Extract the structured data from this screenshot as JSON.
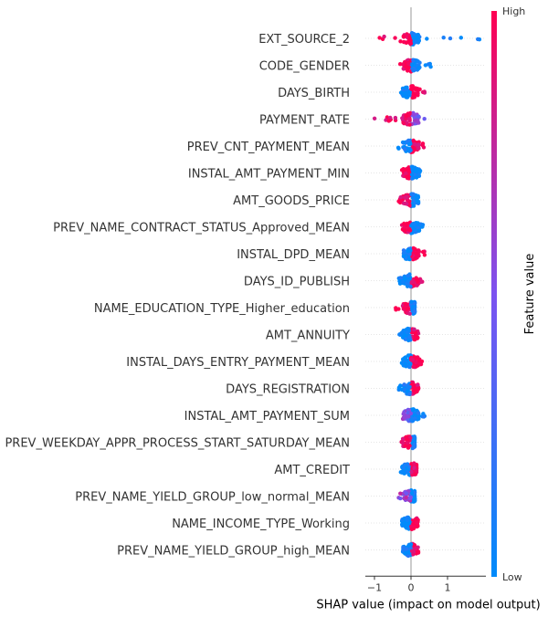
{
  "chart_data": {
    "type": "scatter",
    "subtype": "shap-beeswarm-summary",
    "xlabel": "SHAP value (impact on model output)",
    "xlim": [
      -1.25,
      2.05
    ],
    "xticks": [
      -1,
      0,
      1
    ],
    "colorbar": {
      "title": "Feature value",
      "high_label": "High",
      "low_label": "Low",
      "high_color": "#ff0052",
      "low_color": "#008bfb"
    },
    "features": [
      {
        "name": "EXT_SOURCE_2",
        "min": -1.15,
        "max": 1.9,
        "neg_color": 1.0,
        "pos_color": 0.0
      },
      {
        "name": "CODE_GENDER",
        "min": -0.3,
        "max": 0.55,
        "neg_color": 1.0,
        "pos_color": 0.0
      },
      {
        "name": "DAYS_BIRTH",
        "min": -0.45,
        "max": 0.4,
        "neg_color": 0.0,
        "pos_color": 1.0
      },
      {
        "name": "PAYMENT_RATE",
        "min": -1.0,
        "max": 0.45,
        "neg_color": 1.0,
        "pos_color": 0.5
      },
      {
        "name": "PREV_CNT_PAYMENT_MEAN",
        "min": -0.35,
        "max": 0.55,
        "neg_color": 0.0,
        "pos_color": 1.0
      },
      {
        "name": "INSTAL_AMT_PAYMENT_MIN",
        "min": -0.4,
        "max": 0.3,
        "neg_color": 1.0,
        "pos_color": 0.0
      },
      {
        "name": "AMT_GOODS_PRICE",
        "min": -0.35,
        "max": 0.2,
        "neg_color": 1.0,
        "pos_color": 0.0
      },
      {
        "name": "PREV_NAME_CONTRACT_STATUS_Approved_MEAN",
        "min": -0.25,
        "max": 0.35,
        "neg_color": 1.0,
        "pos_color": 0.0
      },
      {
        "name": "INSTAL_DPD_MEAN",
        "min": -0.2,
        "max": 0.4,
        "neg_color": 0.0,
        "pos_color": 1.0
      },
      {
        "name": "DAYS_ID_PUBLISH",
        "min": -0.35,
        "max": 0.35,
        "neg_color": 0.0,
        "pos_color": 1.0
      },
      {
        "name": "NAME_EDUCATION_TYPE_Higher_education",
        "min": -0.45,
        "max": 0.1,
        "neg_color": 1.0,
        "pos_color": 0.0
      },
      {
        "name": "AMT_ANNUITY",
        "min": -0.35,
        "max": 0.2,
        "neg_color": 0.0,
        "pos_color": 1.0
      },
      {
        "name": "INSTAL_DAYS_ENTRY_PAYMENT_MEAN",
        "min": -0.3,
        "max": 0.35,
        "neg_color": 0.0,
        "pos_color": 1.0
      },
      {
        "name": "DAYS_REGISTRATION",
        "min": -0.35,
        "max": 0.2,
        "neg_color": 0.0,
        "pos_color": 1.0
      },
      {
        "name": "INSTAL_AMT_PAYMENT_SUM",
        "min": -0.25,
        "max": 0.4,
        "neg_color": 0.5,
        "pos_color": 0.0
      },
      {
        "name": "PREV_WEEKDAY_APPR_PROCESS_START_SATURDAY_MEAN",
        "min": -0.4,
        "max": 0.1,
        "neg_color": 1.0,
        "pos_color": 0.0
      },
      {
        "name": "AMT_CREDIT",
        "min": -0.3,
        "max": 0.15,
        "neg_color": 0.0,
        "pos_color": 1.0
      },
      {
        "name": "PREV_NAME_YIELD_GROUP_low_normal_MEAN",
        "min": -0.35,
        "max": 0.1,
        "neg_color": 0.6,
        "pos_color": 0.0
      },
      {
        "name": "NAME_INCOME_TYPE_Working",
        "min": -0.25,
        "max": 0.2,
        "neg_color": 0.0,
        "pos_color": 1.0
      },
      {
        "name": "PREV_NAME_YIELD_GROUP_high_MEAN",
        "min": -0.3,
        "max": 0.2,
        "neg_color": 0.0,
        "pos_color": 1.0
      }
    ]
  }
}
